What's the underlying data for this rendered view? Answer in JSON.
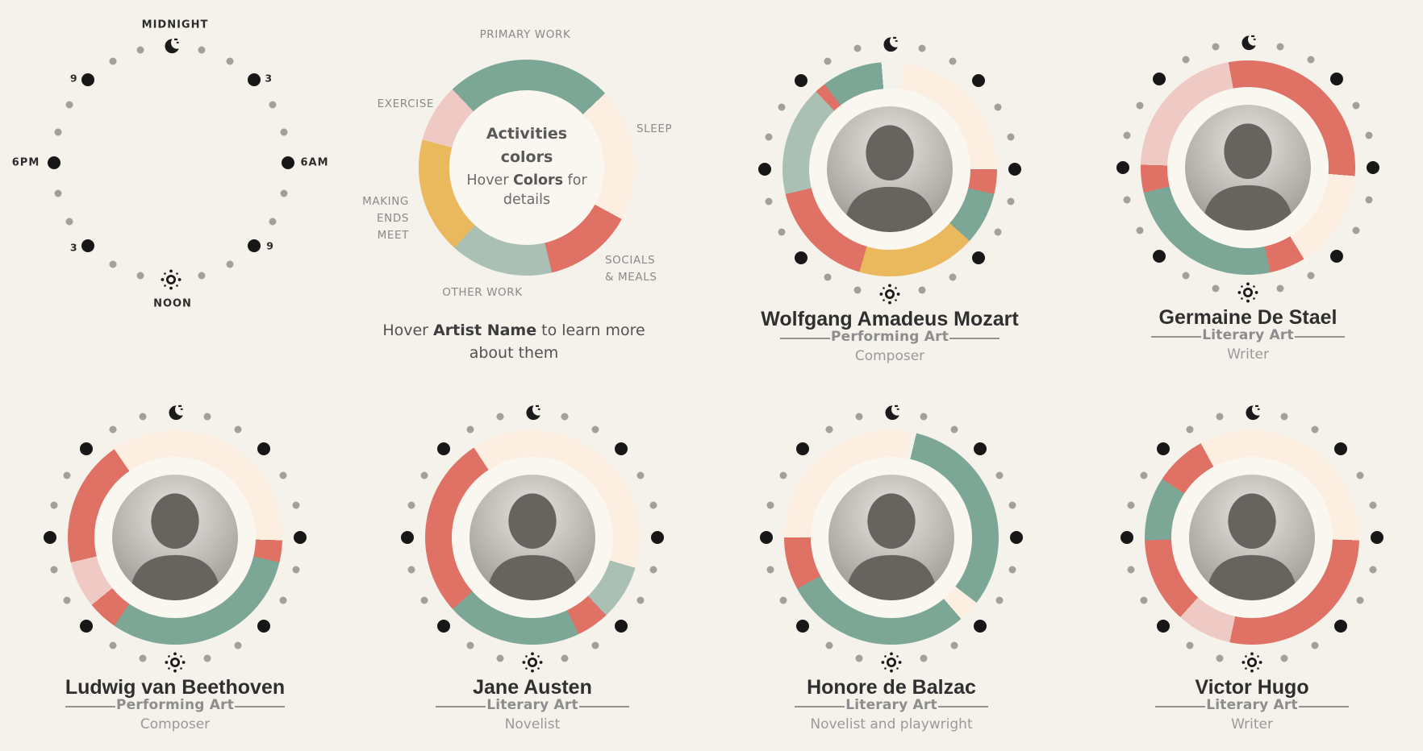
{
  "page": {
    "background": "#f5f2ec"
  },
  "palette": {
    "primary_work": "#7ca695",
    "sleep": "#fcefe1",
    "socials_meals": "#df7165",
    "other_work": "#abc0b4",
    "making_ends_meet": "#ebb95d",
    "exercise": "#efcac4",
    "gap": "#f5f2ec",
    "dot_major": "#171717",
    "dot_minor": "#a3a09a"
  },
  "clock_legend": {
    "midnight": "MIDNIGHT",
    "noon": "NOON",
    "hour_labels": [
      {
        "hour": 3,
        "text": "3"
      },
      {
        "hour": 6,
        "text": "6AM"
      },
      {
        "hour": 9,
        "text": "9"
      },
      {
        "hour": 15,
        "text": "3"
      },
      {
        "hour": 18,
        "text": "6PM"
      },
      {
        "hour": 21,
        "text": "9"
      }
    ]
  },
  "legend": {
    "center_line1": "Activities",
    "center_line2": "colors",
    "hover_prefix": "Hover ",
    "hover_bold": "Colors",
    "hover_suffix": " for details",
    "labels": [
      {
        "id": "primary_work",
        "lines": [
          "PRIMARY WORK"
        ]
      },
      {
        "id": "sleep",
        "lines": [
          "SLEEP"
        ]
      },
      {
        "id": "socials_meals",
        "lines": [
          "SOCIALS",
          "& MEALS"
        ]
      },
      {
        "id": "other_work",
        "lines": [
          "OTHER WORK"
        ]
      },
      {
        "id": "making_ends_meet",
        "lines": [
          "MAKING",
          "ENDS",
          "MEET"
        ]
      },
      {
        "id": "exercise",
        "lines": [
          "EXERCISE"
        ]
      }
    ]
  },
  "hint": {
    "prefix": "Hover ",
    "bold": "Artist Name",
    "suffix": " to learn more about them"
  },
  "chart_data": {
    "type": "radial-activity-small-multiples",
    "units": "hours of day, 24h dial, midnight at top, clockwise; segment start/end in hours (15 deg = 1 h)",
    "activities_legend_segments": [
      {
        "activity": "primary_work",
        "start": 21.1,
        "end": 3.1
      },
      {
        "activity": "sleep",
        "start": 3.1,
        "end": 7.9
      },
      {
        "activity": "socials_meals",
        "start": 7.9,
        "end": 11.1
      },
      {
        "activity": "other_work",
        "start": 11.1,
        "end": 14.8
      },
      {
        "activity": "making_ends_meet",
        "start": 14.8,
        "end": 19.0
      },
      {
        "activity": "exercise",
        "start": 19.0,
        "end": 21.1
      }
    ],
    "artists": [
      {
        "name": "Wolfgang Amadeus Mozart",
        "art": "Performing Art",
        "role": "Composer",
        "segments": [
          {
            "activity": "sleep",
            "start": 0.5,
            "end": 6.0
          },
          {
            "activity": "socials_meals",
            "start": 6.0,
            "end": 6.9
          },
          {
            "activity": "primary_work",
            "start": 6.9,
            "end": 8.8
          },
          {
            "activity": "making_ends_meet",
            "start": 8.8,
            "end": 13.1
          },
          {
            "activity": "socials_meals",
            "start": 13.1,
            "end": 17.1
          },
          {
            "activity": "other_work",
            "start": 17.1,
            "end": 21.1
          },
          {
            "activity": "socials_meals",
            "start": 21.1,
            "end": 21.5
          },
          {
            "activity": "primary_work",
            "start": 21.5,
            "end": 23.7
          }
        ]
      },
      {
        "name": "Germaine De Stael",
        "art": "Literary Art",
        "role": "Writer",
        "segments": [
          {
            "activity": "socials_meals",
            "start": 23.3,
            "end": 6.3
          },
          {
            "activity": "sleep",
            "start": 6.3,
            "end": 9.9
          },
          {
            "activity": "socials_meals",
            "start": 9.9,
            "end": 11.2
          },
          {
            "activity": "primary_work",
            "start": 11.2,
            "end": 17.1
          },
          {
            "activity": "socials_meals",
            "start": 17.1,
            "end": 18.1
          },
          {
            "activity": "exercise",
            "start": 18.1,
            "end": 23.3
          }
        ]
      },
      {
        "name": "Ludwig van Beethoven",
        "art": "Performing Art",
        "role": "Composer",
        "segments": [
          {
            "activity": "sleep",
            "start": 21.7,
            "end": 6.1
          },
          {
            "activity": "socials_meals",
            "start": 6.1,
            "end": 6.9
          },
          {
            "activity": "primary_work",
            "start": 6.9,
            "end": 14.3
          },
          {
            "activity": "socials_meals",
            "start": 14.3,
            "end": 15.4
          },
          {
            "activity": "exercise",
            "start": 15.4,
            "end": 17.1
          },
          {
            "activity": "socials_meals",
            "start": 17.1,
            "end": 21.7
          }
        ]
      },
      {
        "name": "Jane Austen",
        "art": "Literary Art",
        "role": "Novelist",
        "segments": [
          {
            "activity": "sleep",
            "start": 21.8,
            "end": 7.1
          },
          {
            "activity": "other_work",
            "start": 7.1,
            "end": 9.1
          },
          {
            "activity": "socials_meals",
            "start": 9.1,
            "end": 10.3
          },
          {
            "activity": "primary_work",
            "start": 10.3,
            "end": 15.2
          },
          {
            "activity": "socials_meals",
            "start": 15.2,
            "end": 21.8
          }
        ]
      },
      {
        "name": "Honore de Balzac",
        "art": "Literary Art",
        "role": "Novelist and playwright",
        "segments": [
          {
            "activity": "sleep",
            "start": 18.0,
            "end": 0.7
          },
          {
            "activity": "primary_work",
            "start": 0.9,
            "end": 8.5
          },
          {
            "activity": "sleep",
            "start": 8.5,
            "end": 9.3
          },
          {
            "activity": "primary_work",
            "start": 9.3,
            "end": 16.1
          },
          {
            "activity": "socials_meals",
            "start": 16.1,
            "end": 18.0
          }
        ]
      },
      {
        "name": "Victor Hugo",
        "art": "Literary Art",
        "role": "Writer",
        "segments": [
          {
            "activity": "sleep",
            "start": 22.1,
            "end": 6.1
          },
          {
            "activity": "socials_meals",
            "start": 6.1,
            "end": 12.8
          },
          {
            "activity": "exercise",
            "start": 12.8,
            "end": 14.8
          },
          {
            "activity": "socials_meals",
            "start": 14.8,
            "end": 17.9
          },
          {
            "activity": "primary_work",
            "start": 17.9,
            "end": 20.2
          },
          {
            "activity": "socials_meals",
            "start": 20.2,
            "end": 22.1
          }
        ]
      }
    ]
  }
}
